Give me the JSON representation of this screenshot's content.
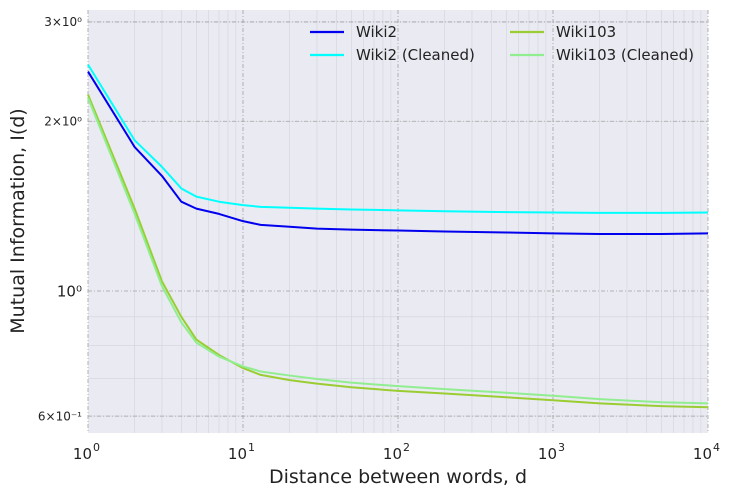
{
  "chart_data": {
    "type": "line",
    "xlabel": "Distance between words, d",
    "ylabel": "Mutual Information, I(d)",
    "xscale": "log",
    "yscale": "log",
    "xlim": [
      1,
      10000
    ],
    "ylim": [
      0.56,
      3.15
    ],
    "grid": true,
    "legend_position": "top-right",
    "x_ticks": [
      {
        "value": 1,
        "base": "10",
        "exp": "0"
      },
      {
        "value": 10,
        "base": "10",
        "exp": "1"
      },
      {
        "value": 100,
        "base": "10",
        "exp": "2"
      },
      {
        "value": 1000,
        "base": "10",
        "exp": "3"
      },
      {
        "value": 10000,
        "base": "10",
        "exp": "4"
      }
    ],
    "y_ticks": [
      {
        "value": 3,
        "label": "3×10⁰",
        "size": "small"
      },
      {
        "value": 2,
        "label": "2×10⁰",
        "size": "small"
      },
      {
        "value": 1,
        "label": "10⁰",
        "size": "large"
      },
      {
        "value": 0.6,
        "label": "6×10⁻¹",
        "size": "small"
      }
    ],
    "series": [
      {
        "name": "Wiki2",
        "color": "#0000ee",
        "x": [
          1,
          2,
          3,
          4,
          5,
          7,
          10,
          13,
          20,
          30,
          50,
          100,
          200,
          500,
          1000,
          2000,
          5000,
          10000
        ],
        "y": [
          2.45,
          1.8,
          1.6,
          1.44,
          1.4,
          1.37,
          1.33,
          1.31,
          1.3,
          1.29,
          1.285,
          1.28,
          1.275,
          1.27,
          1.265,
          1.262,
          1.262,
          1.265
        ]
      },
      {
        "name": "Wiki2 (Cleaned)",
        "color": "#00ffff",
        "x": [
          1,
          2,
          3,
          4,
          5,
          7,
          10,
          13,
          20,
          30,
          50,
          100,
          200,
          500,
          1000,
          2000,
          5000,
          10000
        ],
        "y": [
          2.52,
          1.85,
          1.66,
          1.52,
          1.47,
          1.44,
          1.42,
          1.41,
          1.405,
          1.4,
          1.395,
          1.39,
          1.385,
          1.38,
          1.378,
          1.376,
          1.376,
          1.378
        ]
      },
      {
        "name": "Wiki103",
        "color": "#9acd32",
        "x": [
          1,
          2,
          3,
          4,
          5,
          7,
          10,
          13,
          20,
          30,
          50,
          100,
          200,
          500,
          1000,
          2000,
          5000,
          10000
        ],
        "y": [
          2.23,
          1.4,
          1.04,
          0.9,
          0.82,
          0.77,
          0.73,
          0.71,
          0.695,
          0.685,
          0.675,
          0.665,
          0.658,
          0.648,
          0.64,
          0.632,
          0.625,
          0.622
        ]
      },
      {
        "name": "Wiki103 (Cleaned)",
        "color": "#90ee90",
        "x": [
          1,
          2,
          3,
          4,
          5,
          7,
          10,
          13,
          20,
          30,
          50,
          100,
          200,
          500,
          1000,
          2000,
          5000,
          10000
        ],
        "y": [
          2.2,
          1.37,
          1.02,
          0.88,
          0.81,
          0.765,
          0.735,
          0.72,
          0.708,
          0.698,
          0.688,
          0.678,
          0.67,
          0.66,
          0.652,
          0.643,
          0.635,
          0.632
        ]
      }
    ]
  }
}
